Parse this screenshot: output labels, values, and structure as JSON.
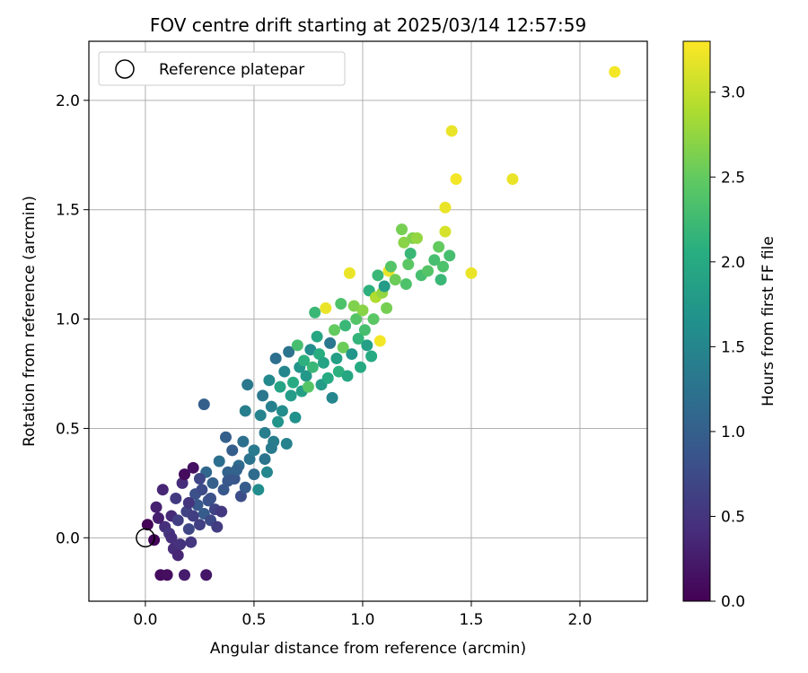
{
  "chart_data": {
    "type": "scatter",
    "title": "FOV centre drift starting at 2025/03/14 12:57:59",
    "xlabel": "Angular distance from reference (arcmin)",
    "ylabel": "Rotation from reference (arcmin)",
    "xlim": [
      -0.26,
      2.31
    ],
    "ylim": [
      -0.29,
      2.27
    ],
    "grid": true,
    "x_ticks": [
      "0.0",
      "0.5",
      "1.0",
      "1.5",
      "2.0"
    ],
    "y_ticks": [
      "0.0",
      "0.5",
      "1.0",
      "1.5",
      "2.0"
    ],
    "legend": {
      "placement": "top-left",
      "entries": [
        "Reference platepar"
      ]
    },
    "reference_point": {
      "x": 0.0,
      "y": 0.0,
      "marker": "open-circle"
    },
    "colorbar": {
      "label": "Hours from first FF file",
      "range": [
        0.0,
        3.3
      ],
      "ticks": [
        "0.0",
        "0.5",
        "1.0",
        "1.5",
        "2.0",
        "2.5",
        "3.0"
      ],
      "colormap": "viridis"
    },
    "points": [
      [
        0.01,
        0.06,
        0.02
      ],
      [
        0.04,
        -0.01,
        0.05
      ],
      [
        0.05,
        0.14,
        0.3
      ],
      [
        0.08,
        0.22,
        0.35
      ],
      [
        0.07,
        -0.17,
        0.1
      ],
      [
        0.1,
        -0.17,
        0.12
      ],
      [
        0.09,
        0.05,
        0.45
      ],
      [
        0.11,
        0.02,
        0.5
      ],
      [
        0.12,
        0.1,
        0.38
      ],
      [
        0.13,
        -0.05,
        0.42
      ],
      [
        0.14,
        0.18,
        0.55
      ],
      [
        0.15,
        0.08,
        0.6
      ],
      [
        0.16,
        -0.03,
        0.48
      ],
      [
        0.17,
        0.25,
        0.4
      ],
      [
        0.18,
        0.29,
        0.1
      ],
      [
        0.19,
        0.12,
        0.65
      ],
      [
        0.2,
        0.04,
        0.7
      ],
      [
        0.21,
        -0.02,
        0.52
      ],
      [
        0.22,
        0.32,
        0.15
      ],
      [
        0.23,
        0.2,
        0.8
      ],
      [
        0.24,
        0.15,
        0.9
      ],
      [
        0.25,
        0.06,
        0.62
      ],
      [
        0.26,
        0.22,
        0.75
      ],
      [
        0.27,
        0.11,
        0.95
      ],
      [
        0.28,
        0.3,
        1.1
      ],
      [
        0.29,
        0.17,
        0.85
      ],
      [
        0.3,
        0.08,
        0.72
      ],
      [
        0.31,
        0.25,
        1.0
      ],
      [
        0.32,
        0.13,
        0.66
      ],
      [
        0.33,
        0.05,
        0.58
      ],
      [
        0.34,
        0.35,
        1.2
      ],
      [
        0.36,
        0.22,
        0.9
      ],
      [
        0.37,
        0.46,
        1.0
      ],
      [
        0.38,
        0.3,
        1.05
      ],
      [
        0.4,
        0.4,
        0.98
      ],
      [
        0.41,
        0.27,
        0.88
      ],
      [
        0.43,
        0.33,
        1.15
      ],
      [
        0.44,
        0.19,
        0.78
      ],
      [
        0.45,
        0.44,
        1.2
      ],
      [
        0.46,
        0.58,
        1.4
      ],
      [
        0.47,
        0.7,
        1.3
      ],
      [
        0.48,
        0.36,
        1.25
      ],
      [
        0.5,
        0.4,
        1.35
      ],
      [
        0.52,
        0.22,
        1.6
      ],
      [
        0.53,
        0.56,
        1.45
      ],
      [
        0.54,
        0.65,
        1.3
      ],
      [
        0.55,
        0.48,
        1.4
      ],
      [
        0.56,
        0.3,
        1.5
      ],
      [
        0.57,
        0.72,
        1.55
      ],
      [
        0.58,
        0.6,
        1.42
      ],
      [
        0.59,
        0.44,
        1.38
      ],
      [
        0.6,
        0.82,
        1.2
      ],
      [
        0.61,
        0.53,
        1.7
      ],
      [
        0.62,
        0.69,
        1.9
      ],
      [
        0.63,
        0.58,
        1.6
      ],
      [
        0.64,
        0.76,
        1.5
      ],
      [
        0.65,
        0.43,
        1.45
      ],
      [
        0.66,
        0.85,
        1.25
      ],
      [
        0.67,
        0.65,
        1.8
      ],
      [
        0.68,
        0.71,
        2.0
      ],
      [
        0.69,
        0.55,
        1.65
      ],
      [
        0.7,
        0.88,
        2.3
      ],
      [
        0.71,
        0.78,
        1.7
      ],
      [
        0.72,
        0.67,
        1.85
      ],
      [
        0.73,
        0.81,
        2.1
      ],
      [
        0.74,
        0.74,
        1.75
      ],
      [
        0.75,
        0.69,
        2.4
      ],
      [
        0.76,
        0.86,
        1.6
      ],
      [
        0.77,
        0.78,
        2.2
      ],
      [
        0.78,
        1.03,
        2.2
      ],
      [
        0.79,
        0.92,
        1.95
      ],
      [
        0.8,
        0.84,
        2.05
      ],
      [
        0.81,
        0.7,
        1.8
      ],
      [
        0.82,
        0.8,
        1.9
      ],
      [
        0.83,
        1.05,
        3.2
      ],
      [
        0.84,
        0.73,
        2.0
      ],
      [
        0.85,
        0.89,
        1.3
      ],
      [
        0.86,
        0.64,
        1.5
      ],
      [
        0.87,
        0.95,
        2.5
      ],
      [
        0.88,
        0.82,
        1.85
      ],
      [
        0.89,
        0.76,
        2.1
      ],
      [
        0.9,
        1.07,
        2.35
      ],
      [
        0.91,
        0.87,
        2.55
      ],
      [
        0.92,
        0.97,
        2.2
      ],
      [
        0.93,
        0.74,
        1.95
      ],
      [
        0.94,
        1.21,
        3.2
      ],
      [
        0.95,
        0.84,
        1.7
      ],
      [
        0.96,
        1.06,
        2.65
      ],
      [
        0.97,
        1.0,
        2.4
      ],
      [
        0.98,
        0.91,
        2.15
      ],
      [
        0.99,
        0.78,
        2.0
      ],
      [
        1.0,
        1.04,
        2.7
      ],
      [
        1.01,
        0.95,
        2.3
      ],
      [
        1.02,
        0.88,
        1.85
      ],
      [
        1.03,
        1.13,
        2.1
      ],
      [
        1.04,
        0.83,
        2.0
      ],
      [
        1.05,
        1.0,
        2.45
      ],
      [
        1.06,
        1.1,
        2.9
      ],
      [
        1.07,
        1.2,
        2.2
      ],
      [
        1.08,
        0.9,
        3.25
      ],
      [
        1.09,
        1.12,
        2.75
      ],
      [
        1.1,
        1.15,
        1.8
      ],
      [
        1.11,
        1.05,
        2.6
      ],
      [
        1.12,
        1.22,
        3.2
      ],
      [
        1.13,
        1.24,
        2.4
      ],
      [
        1.15,
        1.18,
        2.55
      ],
      [
        1.18,
        1.41,
        2.6
      ],
      [
        1.19,
        1.35,
        2.7
      ],
      [
        1.2,
        1.16,
        2.35
      ],
      [
        1.21,
        1.25,
        2.45
      ],
      [
        1.22,
        1.3,
        2.2
      ],
      [
        1.23,
        1.37,
        2.65
      ],
      [
        1.25,
        1.37,
        2.75
      ],
      [
        1.27,
        1.2,
        2.3
      ],
      [
        1.3,
        1.22,
        2.4
      ],
      [
        1.33,
        1.27,
        2.3
      ],
      [
        1.35,
        1.33,
        2.5
      ],
      [
        1.36,
        1.18,
        2.2
      ],
      [
        1.37,
        1.24,
        2.35
      ],
      [
        1.38,
        1.4,
        3.1
      ],
      [
        1.4,
        1.29,
        2.3
      ],
      [
        1.38,
        1.51,
        3.2
      ],
      [
        1.41,
        1.86,
        3.2
      ],
      [
        1.43,
        1.64,
        3.25
      ],
      [
        1.5,
        1.21,
        3.2
      ],
      [
        1.69,
        1.64,
        3.2
      ],
      [
        2.16,
        2.13,
        3.25
      ],
      [
        0.27,
        0.61,
        1.0
      ],
      [
        0.28,
        -0.17,
        0.2
      ],
      [
        0.18,
        -0.17,
        0.25
      ],
      [
        0.15,
        -0.08,
        0.35
      ],
      [
        0.12,
        0.0,
        0.45
      ],
      [
        0.06,
        0.09,
        0.28
      ],
      [
        0.2,
        0.16,
        0.5
      ],
      [
        0.22,
        0.1,
        0.6
      ],
      [
        0.25,
        0.27,
        0.7
      ],
      [
        0.3,
        0.18,
        0.8
      ],
      [
        0.35,
        0.12,
        0.55
      ],
      [
        0.38,
        0.26,
        0.9
      ],
      [
        0.42,
        0.31,
        1.05
      ],
      [
        0.46,
        0.23,
        0.95
      ],
      [
        0.5,
        0.29,
        1.15
      ],
      [
        0.55,
        0.36,
        1.25
      ],
      [
        0.58,
        0.41,
        1.35
      ]
    ]
  }
}
